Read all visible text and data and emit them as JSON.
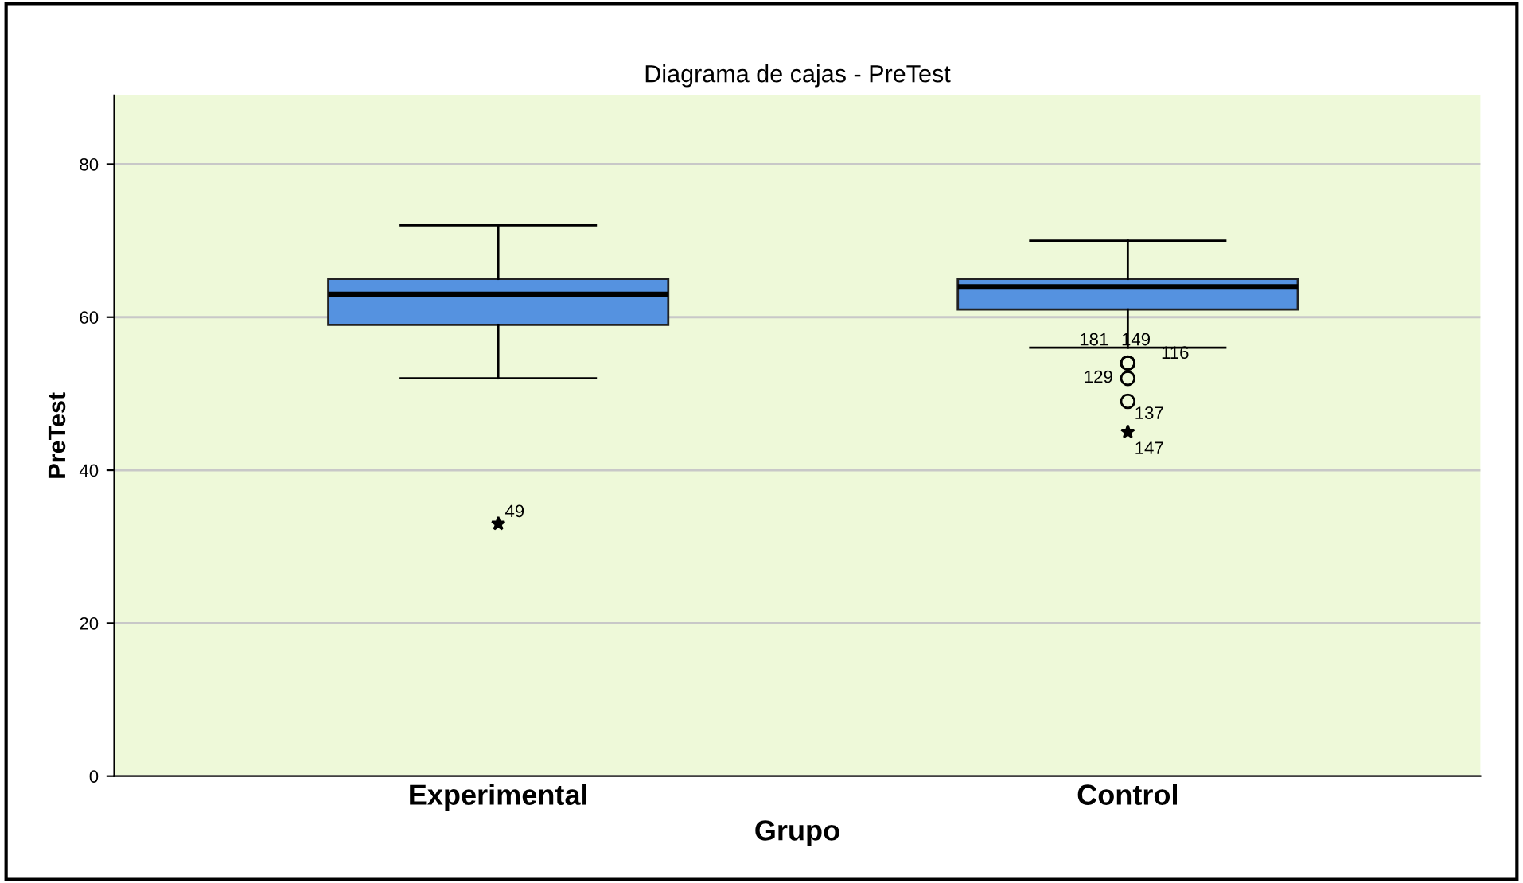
{
  "chart_data": {
    "type": "box",
    "title": "Diagrama de cajas - PreTest",
    "xlabel": "Grupo",
    "ylabel": "PreTest",
    "categories": [
      "Experimental",
      "Control"
    ],
    "boxes": [
      {
        "low": 52,
        "q1": 59,
        "median": 63,
        "q3": 65,
        "high": 72,
        "outliers": [
          33
        ]
      },
      {
        "low": 56,
        "q1": 61,
        "median": 64,
        "q3": 65,
        "high": 70,
        "outliers": [
          54,
          54,
          54,
          52,
          49,
          45
        ]
      }
    ],
    "color": "#5592e0",
    "ylim": [
      0,
      89
    ],
    "yticks": [
      0,
      20,
      40,
      60,
      80
    ],
    "grid": "y",
    "annotations": [
      "49",
      "181",
      "149",
      "116",
      "129",
      "137",
      "147"
    ]
  }
}
